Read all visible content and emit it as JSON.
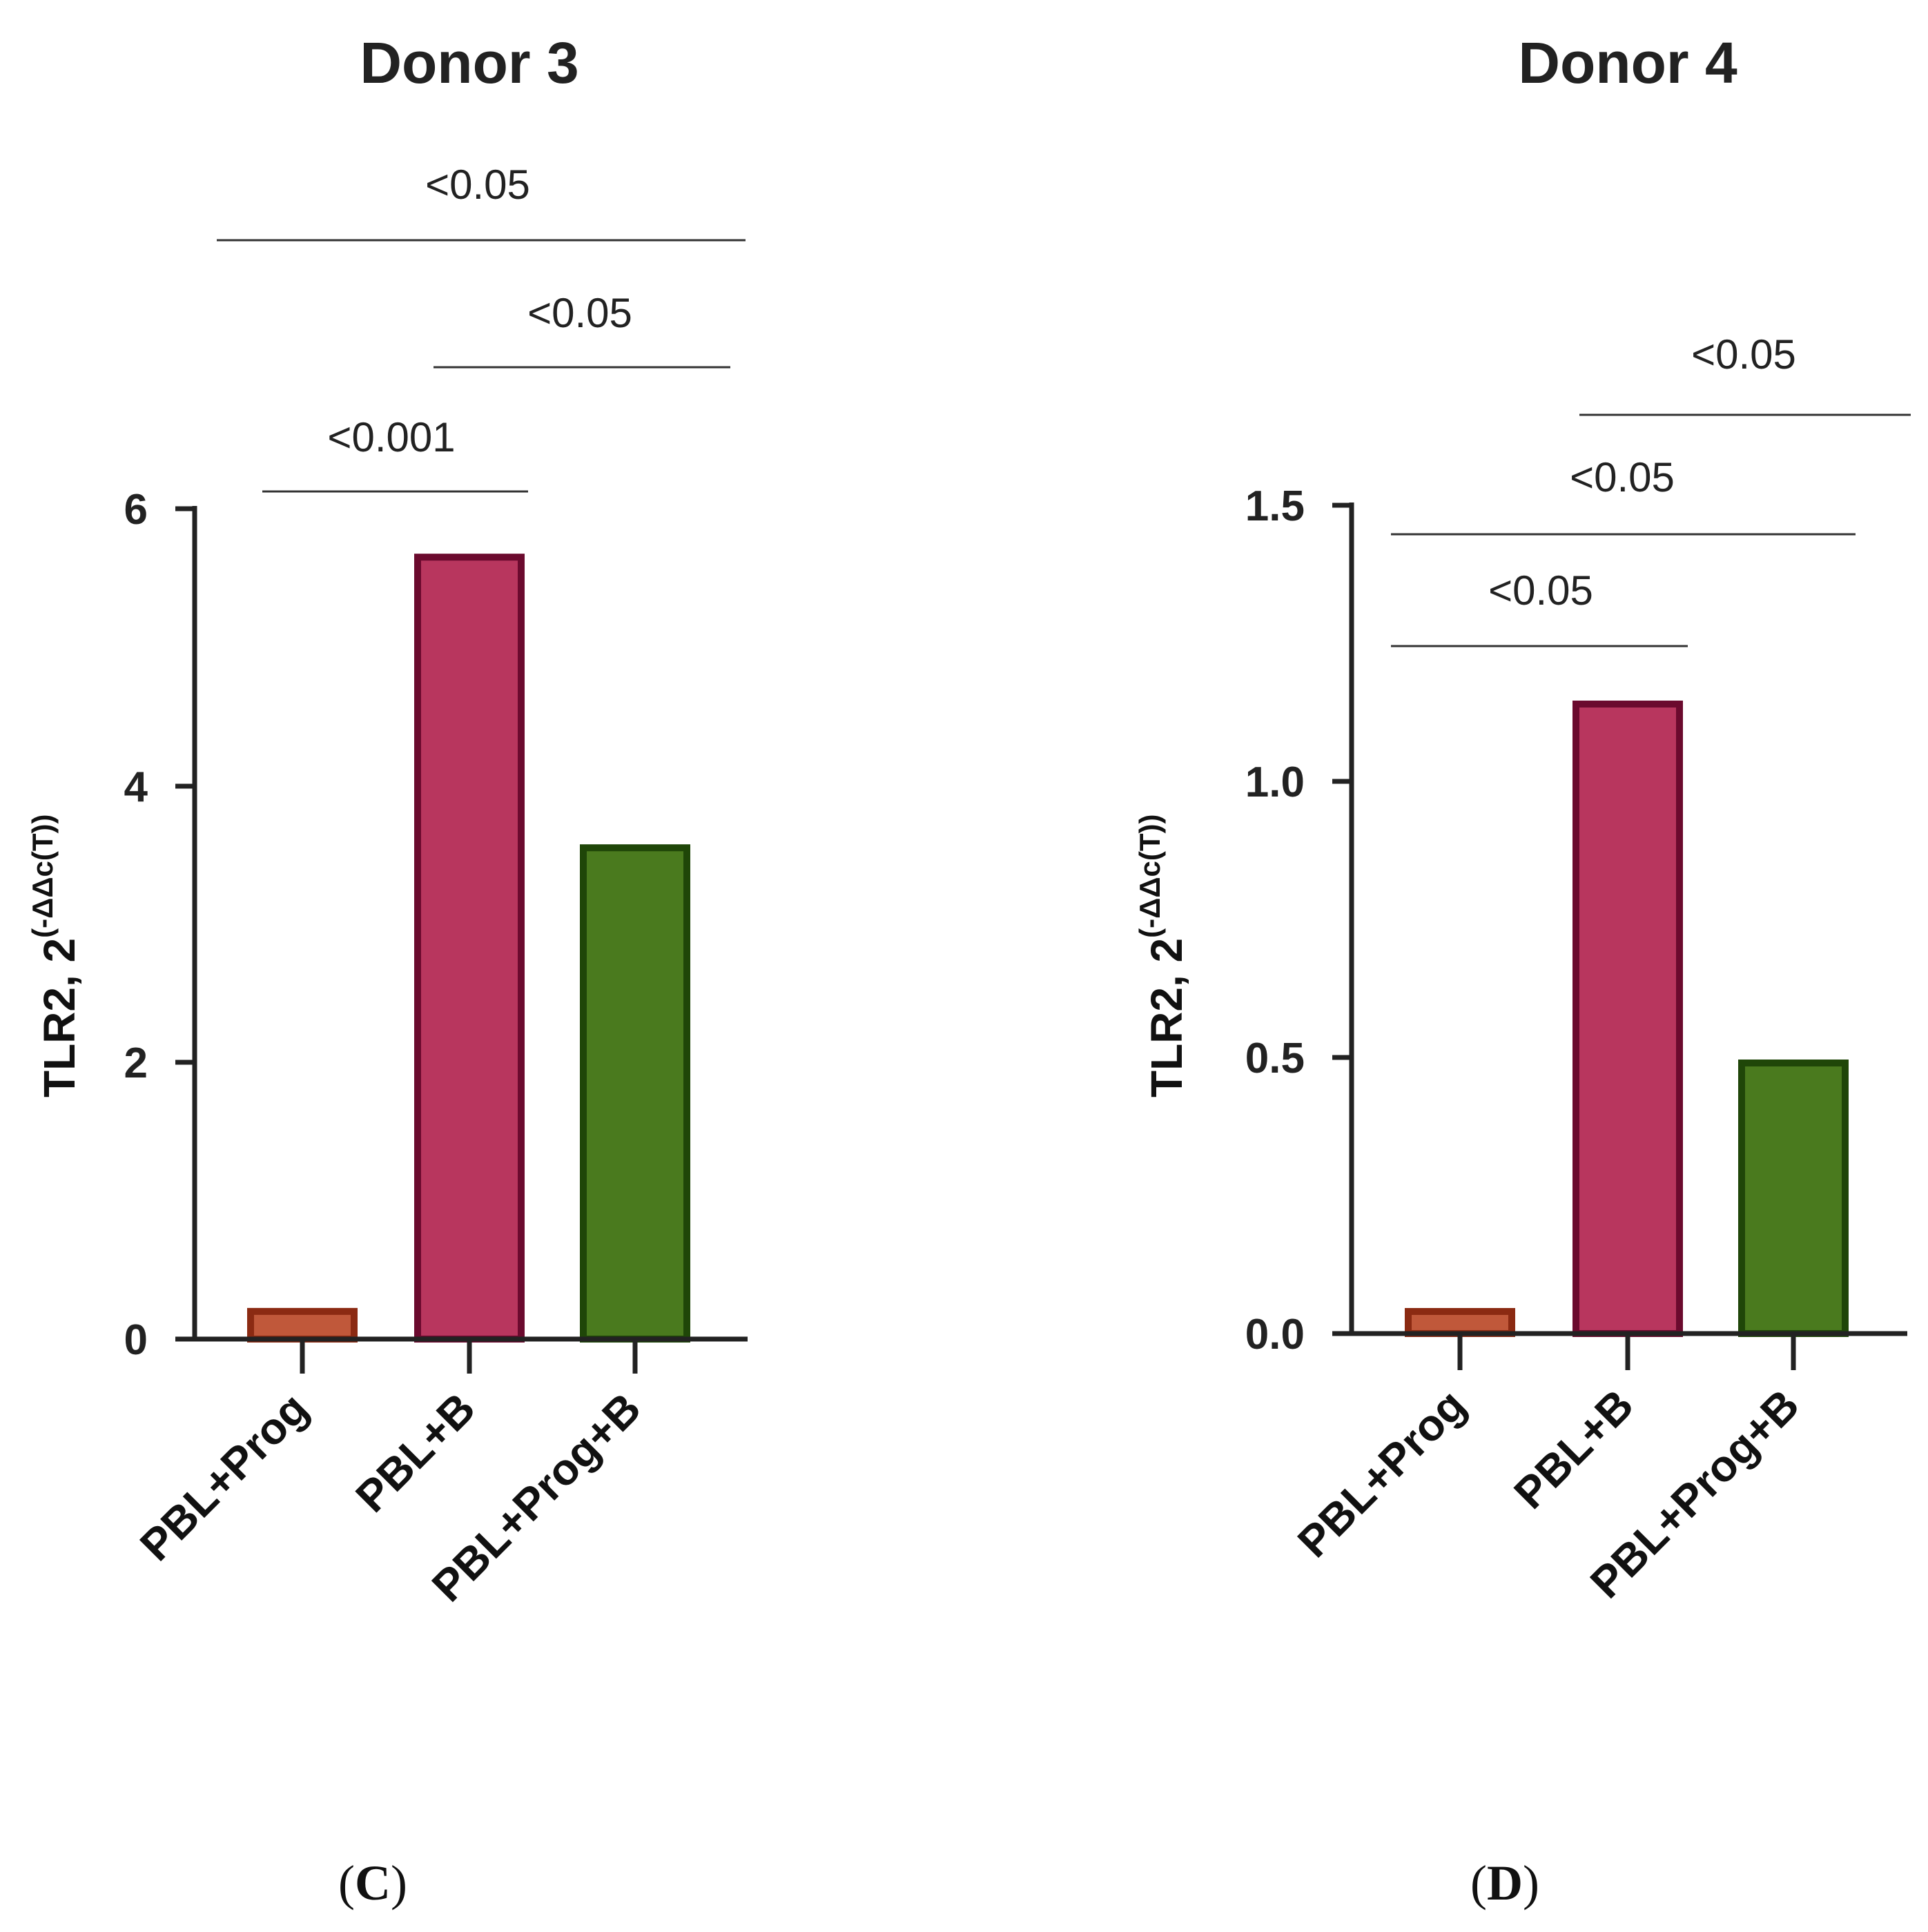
{
  "chart_data": [
    {
      "type": "bar",
      "title": "Donor 3",
      "panel": "C",
      "xlabel": "",
      "ylabel": "TLR2, 2",
      "ylabel_superscript": "(-ΔΔc(T))",
      "categories": [
        "PBL+Prog",
        "PBL+B",
        "PBL+Prog+B"
      ],
      "values": [
        0.2,
        5.65,
        3.55
      ],
      "ylim": [
        0,
        6
      ],
      "yticks": [
        0,
        2,
        4,
        6
      ],
      "ytick_labels": [
        "0",
        "2",
        "4",
        "6"
      ],
      "grid": false,
      "colors": {
        "fills": [
          "#c0583a",
          "#b8365e",
          "#4a7a1e"
        ],
        "edges": [
          "#8b2a12",
          "#6b0a2e",
          "#1f4608"
        ]
      },
      "significance": [
        {
          "from": 0,
          "to": 1,
          "label": "<0.001"
        },
        {
          "from": 1,
          "to": 2,
          "label": "<0.05"
        },
        {
          "from": 0,
          "to": 2,
          "label": "<0.05"
        }
      ]
    },
    {
      "type": "bar",
      "title": "Donor 4",
      "panel": "D",
      "xlabel": "",
      "ylabel": "TLR2, 2",
      "ylabel_superscript": "(-ΔΔc(T))",
      "categories": [
        "PBL+Prog",
        "PBL+B",
        "PBL+Prog+B"
      ],
      "values": [
        0.04,
        1.14,
        0.49
      ],
      "ylim": [
        0,
        1.5
      ],
      "yticks": [
        0,
        0.5,
        1.0,
        1.5
      ],
      "ytick_labels": [
        "0.0",
        "0.5",
        "1.0",
        "1.5"
      ],
      "grid": false,
      "colors": {
        "fills": [
          "#c0583a",
          "#b8365e",
          "#4a7a1e"
        ],
        "edges": [
          "#8b2a12",
          "#6b0a2e",
          "#1f4608"
        ]
      },
      "significance": [
        {
          "from": 0,
          "to": 1,
          "label": "<0.05"
        },
        {
          "from": 0,
          "to": 2,
          "label": "<0.05"
        },
        {
          "from": 1,
          "to": 2,
          "label": "<0.05"
        }
      ]
    }
  ]
}
